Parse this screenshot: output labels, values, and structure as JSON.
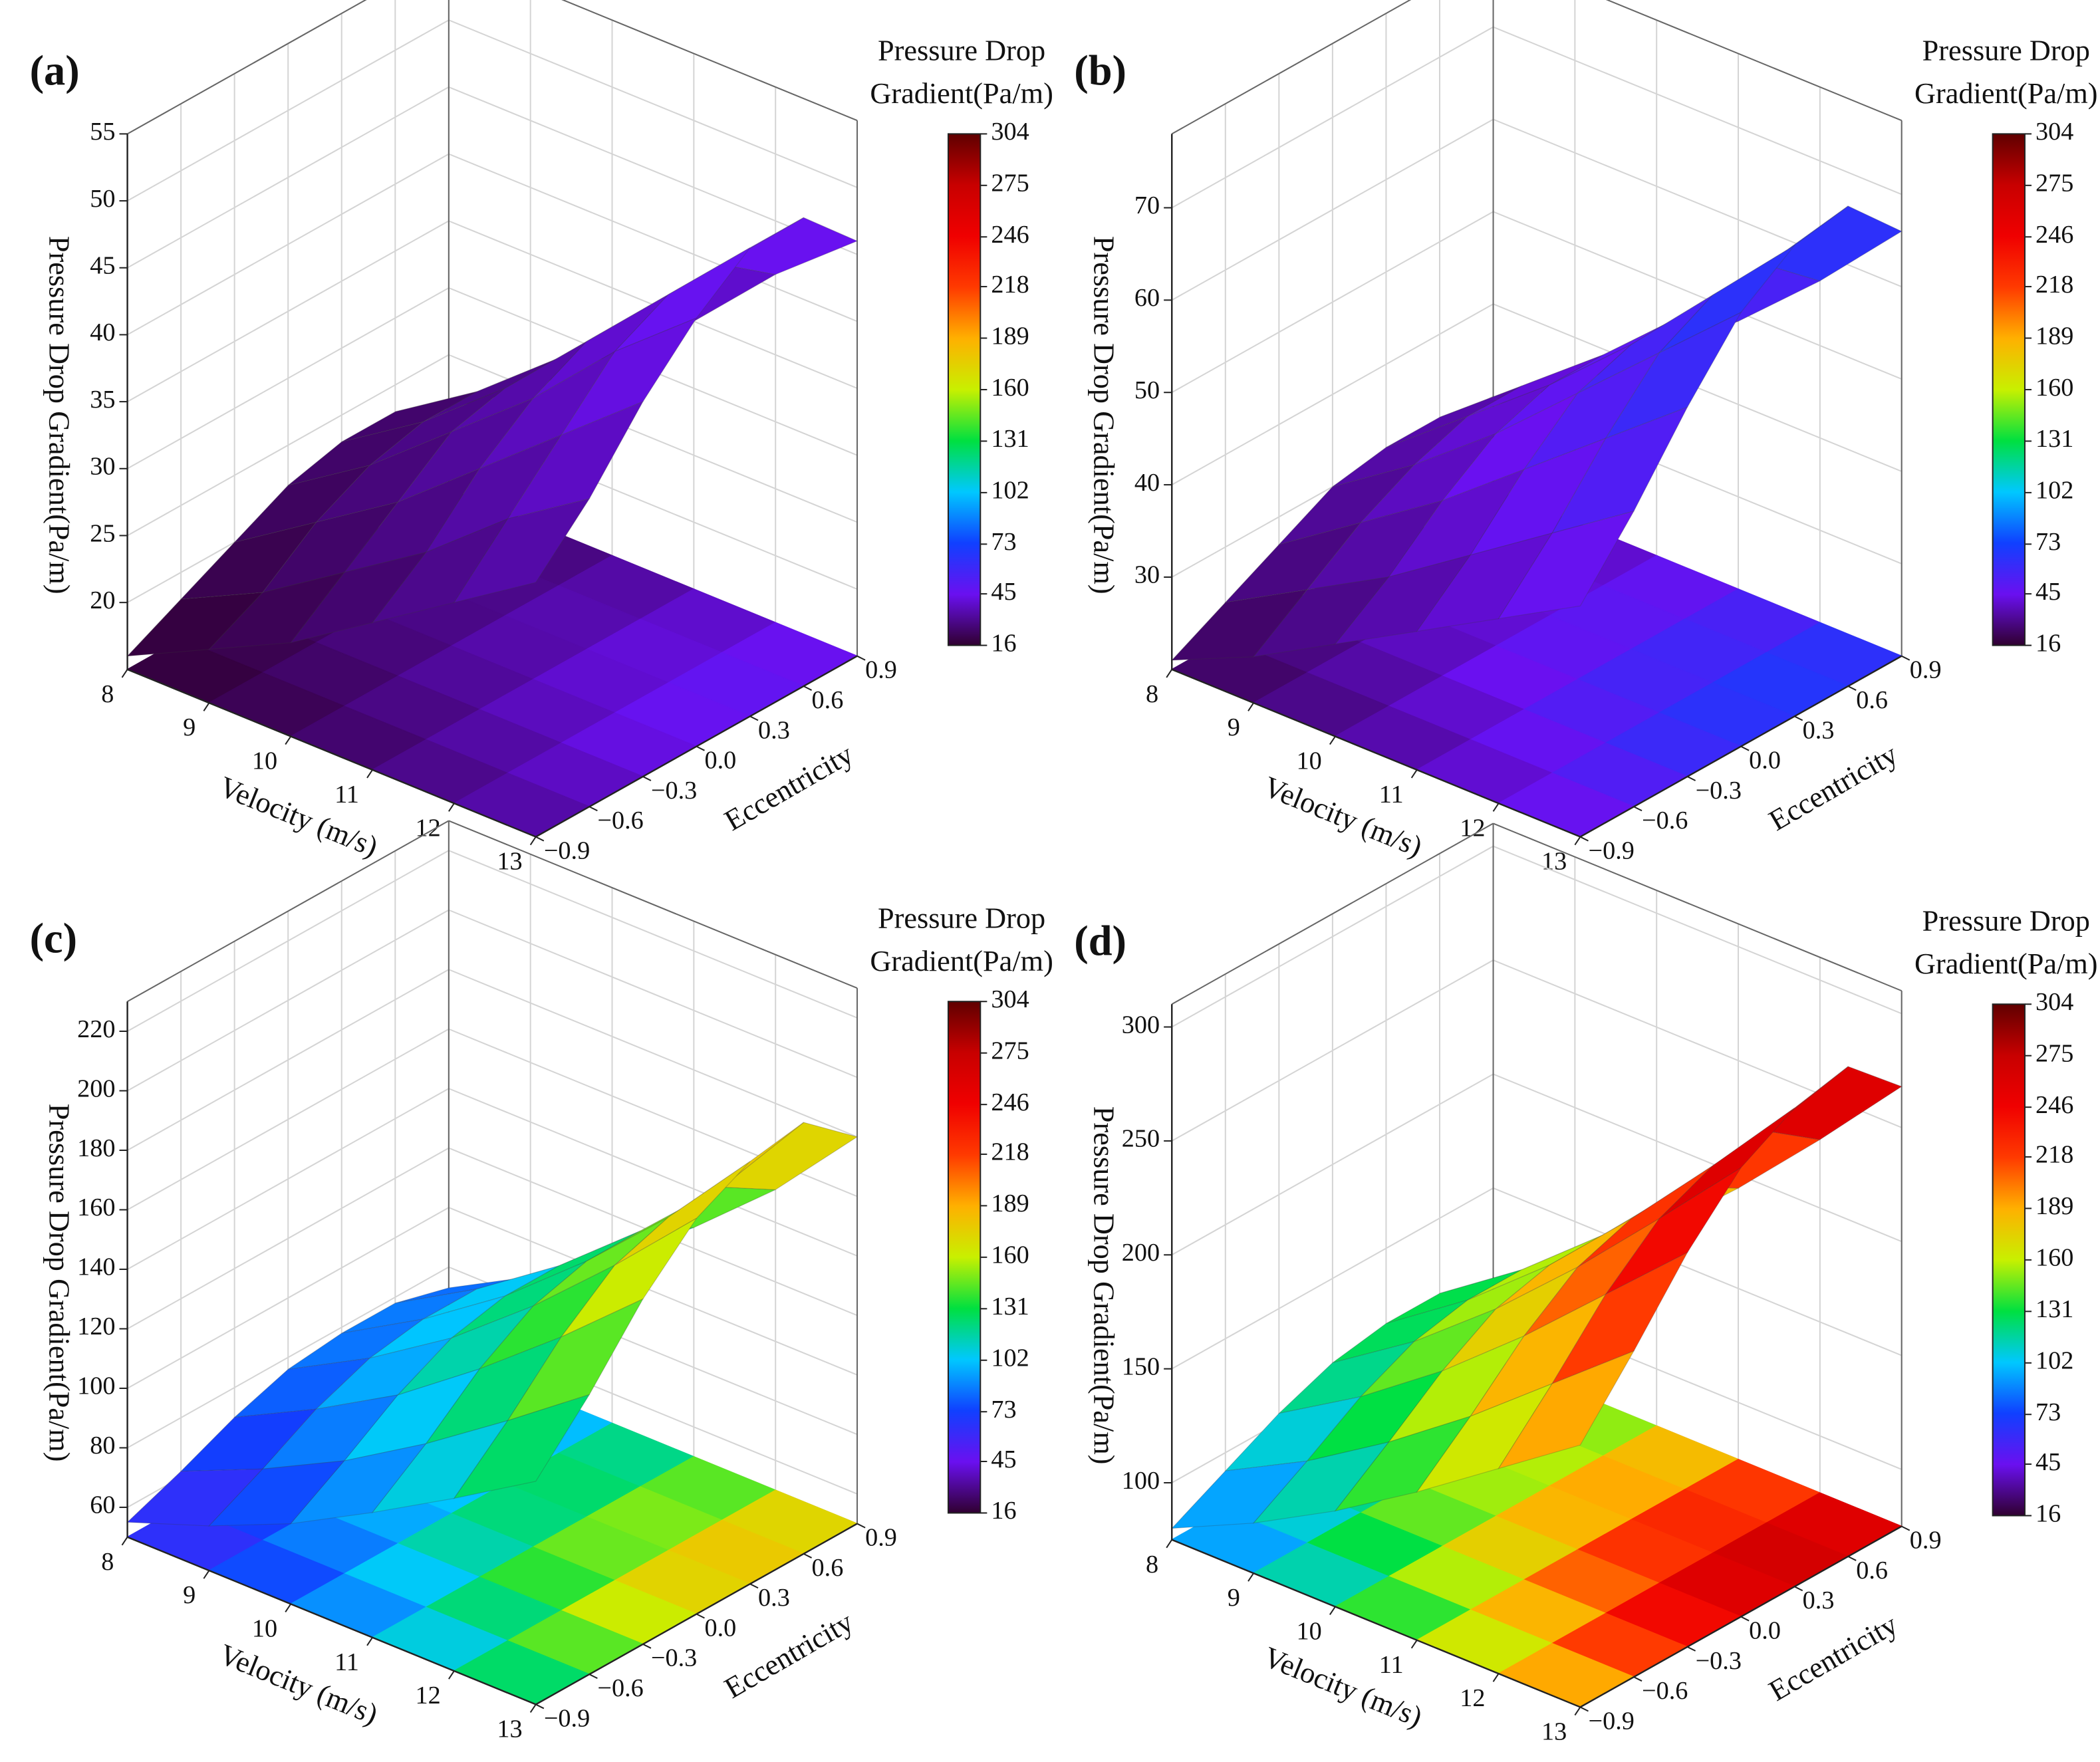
{
  "chart_data": [
    {
      "type": "surface",
      "label": "(a)",
      "colorbar_title": [
        "Pressure Drop",
        "Gradient(Pa/m)"
      ],
      "xlabel": "Velocity (m/s)",
      "ylabel": "Eccentricity",
      "zlabel": "Pressure Drop Gradient(Pa/m)",
      "x": [
        8,
        9,
        10,
        11,
        12,
        13
      ],
      "y": [
        {
          "value": -0.9,
          "label": "−0.9"
        },
        {
          "value": -0.6,
          "label": "−0.6"
        },
        {
          "value": -0.3,
          "label": "−0.3"
        },
        {
          "value": 0,
          "label": "0.0"
        },
        0.3,
        0.6,
        0.9
      ],
      "z": [
        [
          16,
          18,
          20,
          22,
          23,
          23,
          21
        ],
        [
          19,
          21,
          24,
          26,
          27,
          27,
          25
        ],
        [
          22,
          25,
          28,
          31,
          32,
          32,
          30
        ],
        [
          26,
          29,
          33,
          36,
          38,
          38,
          35
        ],
        [
          30,
          34,
          38,
          42,
          44,
          44,
          41
        ],
        [
          34,
          38,
          43,
          47,
          50,
          50,
          46
        ]
      ],
      "zlim": [
        15,
        55
      ],
      "zticks": [
        20,
        25,
        30,
        35,
        40,
        45,
        50,
        55
      ],
      "clim": [
        16,
        304
      ],
      "cticks": [
        16,
        45,
        73,
        102,
        131,
        160,
        189,
        218,
        246,
        275,
        304
      ],
      "colorscale": [
        "#300030",
        "#6a10f0",
        "#1040ff",
        "#00c8ff",
        "#00e040",
        "#c8f000",
        "#ffb000",
        "#ff3a00",
        "#f00000",
        "#c80000",
        "#600000"
      ],
      "grid": true
    },
    {
      "type": "surface",
      "label": "(b)",
      "colorbar_title": [
        "Pressure Drop",
        "Gradient(Pa/m)"
      ],
      "xlabel": "Velocity (m/s)",
      "ylabel": "Eccentricity",
      "zlabel": "Pressure Drop Gradient(Pa/m)",
      "x": [
        8,
        9,
        10,
        11,
        12,
        13
      ],
      "y": [
        {
          "value": -0.9,
          "label": "−0.9"
        },
        {
          "value": -0.6,
          "label": "−0.6"
        },
        {
          "value": -0.3,
          "label": "−0.3"
        },
        {
          "value": 0,
          "label": "0.0"
        },
        0.3,
        0.6,
        0.9
      ],
      "z": [
        [
          21,
          24,
          27,
          30,
          31,
          31,
          29
        ],
        [
          25,
          29,
          33,
          36,
          38,
          38,
          35
        ],
        [
          30,
          34,
          39,
          43,
          45,
          45,
          42
        ],
        [
          35,
          40,
          46,
          51,
          53,
          53,
          49
        ],
        [
          40,
          46,
          53,
          59,
          62,
          62,
          57
        ],
        [
          45,
          52,
          60,
          67,
          71,
          72,
          66
        ]
      ],
      "zlim": [
        20,
        78
      ],
      "zticks": [
        30,
        40,
        50,
        60,
        70
      ],
      "clim": [
        16,
        304
      ],
      "cticks": [
        16,
        45,
        73,
        102,
        131,
        160,
        189,
        218,
        246,
        275,
        304
      ],
      "colorscale": [
        "#300030",
        "#6a10f0",
        "#1040ff",
        "#00c8ff",
        "#00e040",
        "#c8f000",
        "#ffb000",
        "#ff3a00",
        "#f00000",
        "#c80000",
        "#600000"
      ],
      "grid": true
    },
    {
      "type": "surface",
      "label": "(c)",
      "colorbar_title": [
        "Pressure Drop",
        "Gradient(Pa/m)"
      ],
      "xlabel": "Velocity (m/s)",
      "ylabel": "Eccentricity",
      "zlabel": "Pressure Drop Gradient(Pa/m)",
      "x": [
        8,
        9,
        10,
        11,
        12,
        13
      ],
      "y": [
        {
          "value": -0.9,
          "label": "−0.9"
        },
        {
          "value": -0.6,
          "label": "−0.6"
        },
        {
          "value": -0.3,
          "label": "−0.3"
        },
        {
          "value": 0,
          "label": "0.0"
        },
        0.3,
        0.6,
        0.9
      ],
      "z": [
        [
          55,
          62,
          70,
          76,
          78,
          78,
          73
        ],
        [
          65,
          74,
          84,
          91,
          94,
          94,
          88
        ],
        [
          77,
          88,
          100,
          109,
          113,
          113,
          106
        ],
        [
          92,
          105,
          120,
          131,
          136,
          136,
          127
        ],
        [
          108,
          124,
          142,
          156,
          162,
          162,
          151
        ],
        [
          125,
          144,
          166,
          183,
          192,
          195,
          180
        ]
      ],
      "zlim": [
        50,
        230
      ],
      "zticks": [
        60,
        80,
        100,
        120,
        140,
        160,
        180,
        200,
        220
      ],
      "clim": [
        16,
        304
      ],
      "cticks": [
        16,
        45,
        73,
        102,
        131,
        160,
        189,
        218,
        246,
        275,
        304
      ],
      "colorscale": [
        "#300030",
        "#6a10f0",
        "#1040ff",
        "#00c8ff",
        "#00e040",
        "#c8f000",
        "#ffb000",
        "#ff3a00",
        "#f00000",
        "#c80000",
        "#600000"
      ],
      "grid": true
    },
    {
      "type": "surface",
      "label": "(d)",
      "colorbar_title": [
        "Pressure Drop",
        "Gradient(Pa/m)"
      ],
      "xlabel": "Velocity (m/s)",
      "ylabel": "Eccentricity",
      "zlabel": "Pressure Drop Gradient(Pa/m)",
      "x": [
        8,
        9,
        10,
        11,
        12,
        13
      ],
      "y": [
        {
          "value": -0.9,
          "label": "−0.9"
        },
        {
          "value": -0.6,
          "label": "−0.6"
        },
        {
          "value": -0.3,
          "label": "−0.3"
        },
        {
          "value": 0,
          "label": "0.0"
        },
        0.3,
        0.6,
        0.9
      ],
      "z": [
        [
          80,
          92,
          104,
          113,
          117,
          117,
          110
        ],
        [
          97,
          111,
          126,
          137,
          142,
          142,
          133
        ],
        [
          117,
          134,
          152,
          166,
          172,
          172,
          161
        ],
        [
          140,
          160,
          182,
          199,
          207,
          208,
          194
        ],
        [
          165,
          189,
          215,
          235,
          245,
          247,
          230
        ],
        [
          190,
          218,
          248,
          272,
          285,
          290,
          268
        ]
      ],
      "zlim": [
        75,
        310
      ],
      "zticks": [
        100,
        150,
        200,
        250,
        300
      ],
      "clim": [
        16,
        304
      ],
      "cticks": [
        16,
        45,
        73,
        102,
        131,
        160,
        189,
        218,
        246,
        275,
        304
      ],
      "colorscale": [
        "#300030",
        "#6a10f0",
        "#1040ff",
        "#00c8ff",
        "#00e040",
        "#c8f000",
        "#ffb000",
        "#ff3a00",
        "#f00000",
        "#c80000",
        "#600000"
      ],
      "grid": true
    }
  ]
}
